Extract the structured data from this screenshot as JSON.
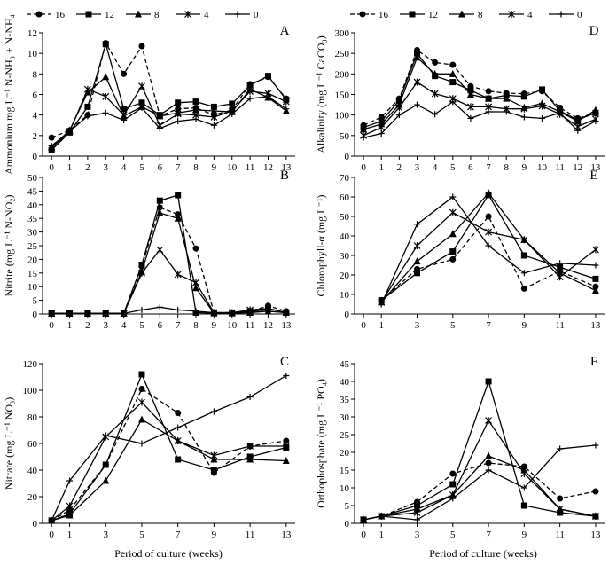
{
  "legend": [
    {
      "name": "16",
      "marker": "circle",
      "dash": "dashed"
    },
    {
      "name": "12",
      "marker": "square",
      "dash": "solid"
    },
    {
      "name": "8",
      "marker": "triangle",
      "dash": "solid"
    },
    {
      "name": "4",
      "marker": "star",
      "dash": "solid"
    },
    {
      "name": "0",
      "marker": "plus",
      "dash": "solid"
    }
  ],
  "xlabel": "Period of culture (weeks)",
  "chart_data": [
    {
      "type": "line",
      "letter": "A",
      "ylabel": "Ammonium mg L⁻¹ N-NH₃ + N-NH₄",
      "ylim": [
        0,
        12
      ],
      "yticks": [
        0,
        2,
        4,
        6,
        8,
        10,
        12
      ],
      "x": [
        0,
        1,
        2,
        3,
        4,
        5,
        6,
        7,
        8,
        9,
        10,
        11,
        12,
        13
      ],
      "xlim": [
        -0.5,
        13.5
      ],
      "series": [
        {
          "name": "16",
          "values": [
            1.8,
            2.5,
            4.0,
            11.0,
            8.0,
            10.7,
            3.9,
            4.6,
            4.7,
            4.0,
            4.5,
            7.0,
            7.7,
            5.6
          ]
        },
        {
          "name": "12",
          "values": [
            0.6,
            2.3,
            4.8,
            10.9,
            4.6,
            5.2,
            4.0,
            5.2,
            5.3,
            4.8,
            5.1,
            6.9,
            7.8,
            5.5
          ]
        },
        {
          "name": "8",
          "values": [
            0.9,
            2.5,
            6.2,
            7.7,
            3.9,
            4.8,
            3.9,
            4.2,
            4.5,
            4.4,
            4.3,
            6.5,
            5.7,
            4.4
          ]
        },
        {
          "name": "4",
          "values": [
            0.8,
            2.4,
            6.5,
            5.8,
            4.0,
            6.8,
            3.0,
            4.1,
            4.0,
            3.8,
            4.4,
            6.3,
            6.1,
            5.3
          ]
        },
        {
          "name": "0",
          "values": [
            1.0,
            2.4,
            3.9,
            4.2,
            3.5,
            4.7,
            2.7,
            3.4,
            3.6,
            3.0,
            4.1,
            5.6,
            5.8,
            4.6
          ]
        }
      ]
    },
    {
      "type": "line",
      "letter": "B",
      "ylabel": "Nitrite (mg L⁻¹ N-NO₂)",
      "ylim": [
        0,
        50
      ],
      "yticks": [
        0,
        5,
        10,
        15,
        20,
        25,
        30,
        35,
        40,
        45,
        50
      ],
      "x": [
        0,
        1,
        2,
        3,
        4,
        5,
        6,
        7,
        8,
        9,
        10,
        11,
        12,
        13
      ],
      "xlim": [
        -0.5,
        13.5
      ],
      "series": [
        {
          "name": "16",
          "values": [
            0.2,
            0.2,
            0.2,
            0.2,
            0.2,
            17.5,
            39.0,
            36.5,
            24.0,
            0.5,
            0.5,
            1.0,
            3.0,
            1.0
          ]
        },
        {
          "name": "12",
          "values": [
            0.2,
            0.2,
            0.2,
            0.2,
            0.2,
            18.0,
            41.5,
            43.5,
            0.5,
            0.3,
            0.3,
            1.0,
            2.0,
            0.5
          ]
        },
        {
          "name": "8",
          "values": [
            0.2,
            0.2,
            0.2,
            0.2,
            0.2,
            15.5,
            37.0,
            35.0,
            9.5,
            0.3,
            0.3,
            0.5,
            1.0,
            0.5
          ]
        },
        {
          "name": "4",
          "values": [
            0.2,
            0.2,
            0.2,
            0.2,
            0.2,
            15.0,
            23.5,
            14.5,
            11.5,
            0.5,
            0.5,
            1.5,
            2.0,
            0.5
          ]
        },
        {
          "name": "0",
          "values": [
            0.2,
            0.2,
            0.2,
            0.2,
            0.2,
            1.5,
            2.5,
            1.5,
            1.0,
            0.5,
            0.5,
            1.0,
            1.0,
            0.5
          ]
        }
      ]
    },
    {
      "type": "line",
      "letter": "C",
      "ylabel": "Nitrate (mg L⁻¹ NO₃)",
      "ylim": [
        0,
        120
      ],
      "yticks": [
        0,
        20,
        40,
        60,
        80,
        100,
        120
      ],
      "x": [
        0,
        1,
        3,
        5,
        7,
        9,
        11,
        13
      ],
      "xlim": [
        -0.5,
        13.5
      ],
      "series": [
        {
          "name": "16",
          "values": [
            2,
            10,
            44,
            101,
            83,
            38,
            58,
            62
          ]
        },
        {
          "name": "12",
          "values": [
            2,
            7,
            44,
            112,
            48,
            40,
            50,
            57
          ]
        },
        {
          "name": "8",
          "values": [
            2,
            6,
            32,
            78,
            62,
            48,
            48,
            47
          ]
        },
        {
          "name": "4",
          "values": [
            2,
            13,
            65,
            91,
            62,
            51,
            58,
            58
          ]
        },
        {
          "name": "0",
          "values": [
            2,
            32,
            66,
            60,
            72,
            84,
            95,
            111
          ]
        }
      ]
    },
    {
      "type": "line",
      "letter": "D",
      "ylabel": "Alkalinity (mg L⁻¹ CaCO₃)",
      "ylim": [
        0,
        300
      ],
      "yticks": [
        0,
        50,
        100,
        150,
        200,
        250,
        300
      ],
      "x": [
        0,
        1,
        2,
        3,
        4,
        5,
        6,
        7,
        8,
        9,
        10,
        11,
        12,
        13
      ],
      "xlim": [
        -0.5,
        13.5
      ],
      "series": [
        {
          "name": "16",
          "values": [
            75,
            95,
            140,
            258,
            228,
            222,
            170,
            158,
            153,
            152,
            158,
            118,
            92,
            105
          ]
        },
        {
          "name": "12",
          "values": [
            70,
            85,
            135,
            250,
            195,
            180,
            160,
            140,
            148,
            145,
            162,
            110,
            88,
            105
          ]
        },
        {
          "name": "8",
          "values": [
            65,
            78,
            125,
            240,
            200,
            200,
            150,
            140,
            140,
            118,
            128,
            108,
            85,
            112
          ]
        },
        {
          "name": "4",
          "values": [
            50,
            70,
            118,
            180,
            152,
            140,
            120,
            120,
            115,
            115,
            122,
            102,
            72,
            90
          ]
        },
        {
          "name": "0",
          "values": [
            45,
            55,
            100,
            125,
            102,
            132,
            92,
            108,
            108,
            95,
            92,
            105,
            62,
            85
          ]
        }
      ]
    },
    {
      "type": "line",
      "letter": "E",
      "ylabel": "Chlorophyll-α (mg L⁻¹)",
      "ylim": [
        0,
        70
      ],
      "yticks": [
        0,
        10,
        20,
        30,
        40,
        50,
        60,
        70
      ],
      "x": [
        1,
        3,
        5,
        7,
        9,
        11,
        13
      ],
      "xticks": [
        0,
        1,
        3,
        5,
        7,
        9,
        11,
        13
      ],
      "xlim": [
        -0.5,
        13.5
      ],
      "series": [
        {
          "name": "16",
          "values": [
            7,
            23,
            28,
            50,
            13,
            22,
            14
          ]
        },
        {
          "name": "12",
          "values": [
            7,
            21,
            32,
            61,
            30,
            24,
            18
          ]
        },
        {
          "name": "8",
          "values": [
            6,
            27,
            41,
            62,
            38,
            21,
            12
          ]
        },
        {
          "name": "4",
          "values": [
            6,
            35,
            52,
            42,
            38,
            19,
            33
          ]
        },
        {
          "name": "0",
          "values": [
            5,
            46,
            60,
            35,
            21,
            26,
            25
          ]
        }
      ]
    },
    {
      "type": "line",
      "letter": "F",
      "ylabel": "Orthophosphate (mg L⁻¹ PO₄)",
      "ylim": [
        0,
        45
      ],
      "yticks": [
        0,
        5,
        10,
        15,
        20,
        25,
        30,
        35,
        40,
        45
      ],
      "x": [
        0,
        1,
        3,
        5,
        7,
        9,
        11,
        13
      ],
      "xlim": [
        -0.5,
        13.5
      ],
      "series": [
        {
          "name": "16",
          "values": [
            1,
            2,
            6,
            14,
            17,
            16,
            7,
            9
          ]
        },
        {
          "name": "12",
          "values": [
            1,
            2,
            5,
            11,
            40,
            5,
            3,
            2
          ]
        },
        {
          "name": "8",
          "values": [
            1,
            2,
            4,
            8,
            19,
            15,
            4,
            2
          ]
        },
        {
          "name": "4",
          "values": [
            1,
            2,
            3,
            8,
            29,
            14,
            4,
            2
          ]
        },
        {
          "name": "0",
          "values": [
            1,
            2,
            1,
            7,
            15,
            10,
            21,
            22
          ]
        }
      ]
    }
  ]
}
